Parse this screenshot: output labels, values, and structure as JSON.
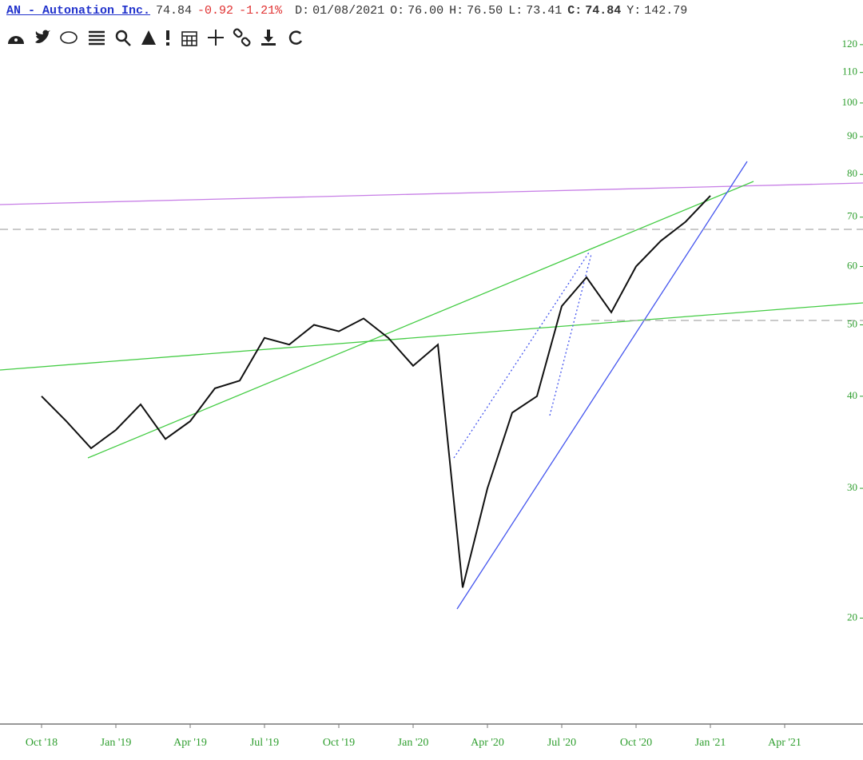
{
  "header": {
    "symbol_link": "AN - Autonation Inc.",
    "last": "74.84",
    "change": "-0.92",
    "change_pct": "-1.21%",
    "fields": [
      {
        "label": "D:",
        "value": "01/08/2021"
      },
      {
        "label": "O:",
        "value": "76.00"
      },
      {
        "label": "H:",
        "value": "76.50"
      },
      {
        "label": "L:",
        "value": "73.41"
      },
      {
        "label": "C:",
        "value": "74.84"
      },
      {
        "label": "Y:",
        "value": "142.79"
      }
    ]
  },
  "chart_data": {
    "type": "line",
    "log_y": true,
    "x": [
      "2018-10",
      "2018-11",
      "2018-12",
      "2019-01",
      "2019-02",
      "2019-03",
      "2019-04",
      "2019-05",
      "2019-06",
      "2019-07",
      "2019-08",
      "2019-09",
      "2019-10",
      "2019-11",
      "2019-12",
      "2020-01",
      "2020-02",
      "2020-03",
      "2020-04",
      "2020-05",
      "2020-06",
      "2020-07",
      "2020-08",
      "2020-09",
      "2020-10",
      "2020-11",
      "2020-12",
      "2021-01"
    ],
    "series": [
      {
        "color": "#111111",
        "values": [
          40,
          37,
          34,
          36,
          39,
          35,
          37,
          41,
          42,
          48,
          47,
          50,
          49,
          51,
          48,
          44,
          47,
          22,
          30,
          38,
          40,
          53,
          58,
          52,
          60,
          65,
          69,
          74.84
        ]
      }
    ],
    "ylim": [
      14.4,
      128
    ],
    "yticks": [
      20,
      30,
      40,
      50,
      60,
      70,
      80,
      90,
      100,
      110,
      120
    ],
    "xlim": [
      "2018-08",
      "2021-07"
    ],
    "xticks": [
      {
        "value": "2018-10",
        "label": "Oct '18"
      },
      {
        "value": "2019-01",
        "label": "Jan '19"
      },
      {
        "value": "2019-04",
        "label": "Apr '19"
      },
      {
        "value": "2019-07",
        "label": "Jul '19"
      },
      {
        "value": "2019-10",
        "label": "Oct '19"
      },
      {
        "value": "2020-01",
        "label": "Jan '20"
      },
      {
        "value": "2020-04",
        "label": "Apr '20"
      },
      {
        "value": "2020-07",
        "label": "Jul '20"
      },
      {
        "value": "2020-10",
        "label": "Oct '20"
      },
      {
        "value": "2021-01",
        "label": "Jan '21"
      },
      {
        "value": "2021-04",
        "label": "Apr '21"
      }
    ],
    "tick_color": "#2e9e2e"
  }
}
